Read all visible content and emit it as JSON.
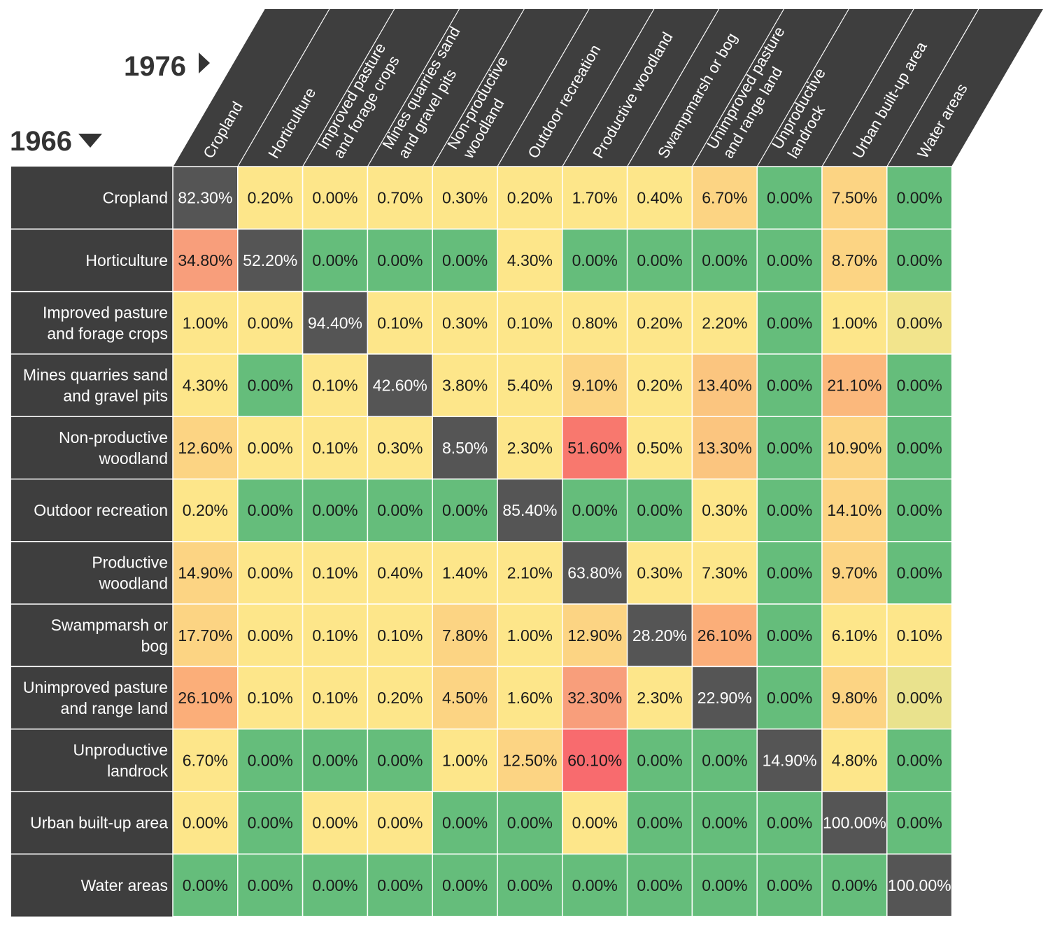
{
  "chart_data": {
    "type": "heatmap",
    "row_axis_label": "1966",
    "col_axis_label": "1976",
    "rows": [
      [
        "Cropland"
      ],
      [
        "Horticulture"
      ],
      [
        "Improved pasture",
        "and forage crops"
      ],
      [
        "Mines quarries sand",
        "and gravel pits"
      ],
      [
        "Non-productive",
        "woodland"
      ],
      [
        "Outdoor recreation"
      ],
      [
        "Productive",
        "woodland"
      ],
      [
        "Swampmarsh or",
        "bog"
      ],
      [
        "Unimproved pasture",
        "and range land"
      ],
      [
        "Unproductive",
        "landrock"
      ],
      [
        "Urban built-up area"
      ],
      [
        "Water areas"
      ]
    ],
    "columns": [
      [
        "Cropland"
      ],
      [
        "Horticulture"
      ],
      [
        "Improved pasture",
        "and forage crops"
      ],
      [
        "Mines quarries sand",
        "and gravel pits"
      ],
      [
        "Non-productive",
        "woodland"
      ],
      [
        "Outdoor recreation"
      ],
      [
        "Productive woodland"
      ],
      [
        "Swampmarsh or bog"
      ],
      [
        "Unimproved pasture",
        "and range land"
      ],
      [
        "Unproductive",
        "landrock"
      ],
      [
        "Urban built-up area"
      ],
      [
        "Water areas"
      ]
    ],
    "values": [
      [
        "82.30%",
        "0.20%",
        "0.00%",
        "0.70%",
        "0.30%",
        "0.20%",
        "1.70%",
        "0.40%",
        "6.70%",
        "0.00%",
        "7.50%",
        "0.00%"
      ],
      [
        "34.80%",
        "52.20%",
        "0.00%",
        "0.00%",
        "0.00%",
        "4.30%",
        "0.00%",
        "0.00%",
        "0.00%",
        "0.00%",
        "8.70%",
        "0.00%"
      ],
      [
        "1.00%",
        "0.00%",
        "94.40%",
        "0.10%",
        "0.30%",
        "0.10%",
        "0.80%",
        "0.20%",
        "2.20%",
        "0.00%",
        "1.00%",
        "0.00%"
      ],
      [
        "4.30%",
        "0.00%",
        "0.10%",
        "42.60%",
        "3.80%",
        "5.40%",
        "9.10%",
        "0.20%",
        "13.40%",
        "0.00%",
        "21.10%",
        "0.00%"
      ],
      [
        "12.60%",
        "0.00%",
        "0.10%",
        "0.30%",
        "8.50%",
        "2.30%",
        "51.60%",
        "0.50%",
        "13.30%",
        "0.00%",
        "10.90%",
        "0.00%"
      ],
      [
        "0.20%",
        "0.00%",
        "0.00%",
        "0.00%",
        "0.00%",
        "85.40%",
        "0.00%",
        "0.00%",
        "0.30%",
        "0.00%",
        "14.10%",
        "0.00%"
      ],
      [
        "14.90%",
        "0.00%",
        "0.10%",
        "0.40%",
        "1.40%",
        "2.10%",
        "63.80%",
        "0.30%",
        "7.30%",
        "0.00%",
        "9.70%",
        "0.00%"
      ],
      [
        "17.70%",
        "0.00%",
        "0.10%",
        "0.10%",
        "7.80%",
        "1.00%",
        "12.90%",
        "28.20%",
        "26.10%",
        "0.00%",
        "6.10%",
        "0.10%"
      ],
      [
        "26.10%",
        "0.10%",
        "0.10%",
        "0.20%",
        "4.50%",
        "1.60%",
        "32.30%",
        "2.30%",
        "22.90%",
        "0.00%",
        "9.80%",
        "0.00%"
      ],
      [
        "6.70%",
        "0.00%",
        "0.00%",
        "0.00%",
        "1.00%",
        "12.50%",
        "60.10%",
        "0.00%",
        "0.00%",
        "14.90%",
        "4.80%",
        "0.00%"
      ],
      [
        "0.00%",
        "0.00%",
        "0.00%",
        "0.00%",
        "0.00%",
        "0.00%",
        "0.00%",
        "0.00%",
        "0.00%",
        "0.00%",
        "100.00%",
        "0.00%"
      ],
      [
        "0.00%",
        "0.00%",
        "0.00%",
        "0.00%",
        "0.00%",
        "0.00%",
        "0.00%",
        "0.00%",
        "0.00%",
        "0.00%",
        "0.00%",
        "100.00%"
      ]
    ],
    "cell_colors": [
      [
        "#555555",
        "#fde68a",
        "#fde68a",
        "#fde68a",
        "#fde68a",
        "#fde68a",
        "#fde68a",
        "#fde68a",
        "#fcd483",
        "#65bd7b",
        "#fcd483",
        "#65bd7b"
      ],
      [
        "#f89e7b",
        "#555555",
        "#65bd7b",
        "#65bd7b",
        "#65bd7b",
        "#fde68a",
        "#65bd7b",
        "#65bd7b",
        "#65bd7b",
        "#65bd7b",
        "#fcd483",
        "#65bd7b"
      ],
      [
        "#fde68a",
        "#fde68a",
        "#555555",
        "#fde68a",
        "#fde68a",
        "#fde68a",
        "#fde68a",
        "#fde68a",
        "#fde68a",
        "#65bd7b",
        "#fde68a",
        "#f2e48c"
      ],
      [
        "#fde68a",
        "#65bd7b",
        "#fde68a",
        "#555555",
        "#fde68a",
        "#fde68a",
        "#fcd483",
        "#fde68a",
        "#fbc57f",
        "#65bd7b",
        "#fbb87c",
        "#65bd7b"
      ],
      [
        "#fcd483",
        "#fde68a",
        "#fde68a",
        "#fde68a",
        "#555555",
        "#fde68a",
        "#f8786e",
        "#fde68a",
        "#fbc57f",
        "#65bd7b",
        "#fcd483",
        "#65bd7b"
      ],
      [
        "#fde68a",
        "#65bd7b",
        "#65bd7b",
        "#65bd7b",
        "#65bd7b",
        "#555555",
        "#65bd7b",
        "#65bd7b",
        "#fde68a",
        "#65bd7b",
        "#fcd483",
        "#65bd7b"
      ],
      [
        "#fcd483",
        "#fde68a",
        "#fde68a",
        "#fde68a",
        "#fde68a",
        "#fde68a",
        "#555555",
        "#fde68a",
        "#fde68a",
        "#65bd7b",
        "#fcd483",
        "#65bd7b"
      ],
      [
        "#fcd483",
        "#fde68a",
        "#fde68a",
        "#fde68a",
        "#fcd483",
        "#fde68a",
        "#fcd483",
        "#555555",
        "#fbae79",
        "#65bd7b",
        "#fde68a",
        "#fde68a"
      ],
      [
        "#fbae79",
        "#fde68a",
        "#fde68a",
        "#fde68a",
        "#fcd483",
        "#fde68a",
        "#f89e7b",
        "#fde68a",
        "#555555",
        "#65bd7b",
        "#fcd483",
        "#e9e28d"
      ],
      [
        "#fde68a",
        "#65bd7b",
        "#65bd7b",
        "#65bd7b",
        "#fde68a",
        "#fcd483",
        "#f86b6e",
        "#65bd7b",
        "#65bd7b",
        "#555555",
        "#fde68a",
        "#65bd7b"
      ],
      [
        "#fde68a",
        "#65bd7b",
        "#fde68a",
        "#fde68a",
        "#65bd7b",
        "#65bd7b",
        "#fde68a",
        "#65bd7b",
        "#65bd7b",
        "#65bd7b",
        "#555555",
        "#65bd7b"
      ],
      [
        "#65bd7b",
        "#65bd7b",
        "#65bd7b",
        "#65bd7b",
        "#65bd7b",
        "#65bd7b",
        "#65bd7b",
        "#65bd7b",
        "#65bd7b",
        "#65bd7b",
        "#65bd7b",
        "#555555"
      ]
    ],
    "header_color": "#3e3e3e",
    "diagonal_color": "#555555"
  }
}
